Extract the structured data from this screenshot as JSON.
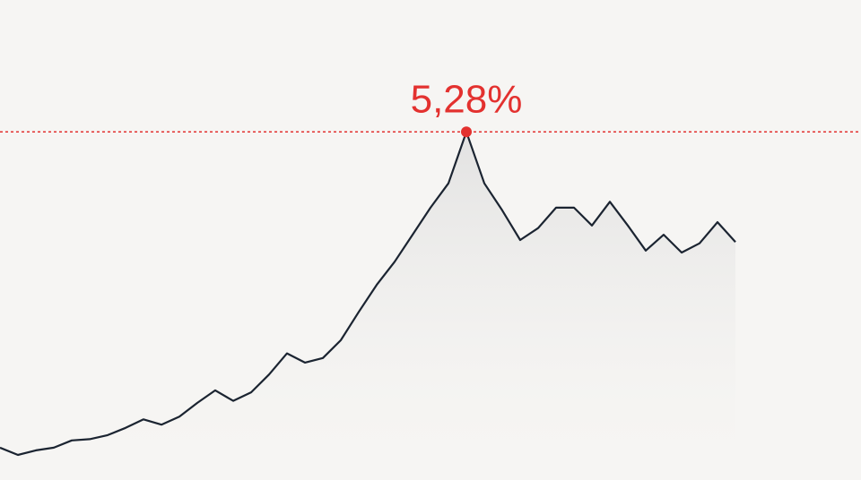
{
  "chart_data": {
    "type": "line",
    "values": [
      0.49,
      0.38,
      0.45,
      0.49,
      0.6,
      0.62,
      0.68,
      0.79,
      0.92,
      0.84,
      0.96,
      1.17,
      1.36,
      1.2,
      1.33,
      1.6,
      1.92,
      1.78,
      1.85,
      2.12,
      2.55,
      2.96,
      3.31,
      3.72,
      4.13,
      4.5,
      5.28,
      4.5,
      4.09,
      3.64,
      3.82,
      4.13,
      4.13,
      3.86,
      4.22,
      3.86,
      3.48,
      3.72,
      3.45,
      3.59,
      3.91,
      3.61
    ],
    "value_labels": [
      null,
      null,
      null,
      null,
      null,
      null,
      null,
      null,
      null,
      null,
      null,
      null,
      null,
      null,
      null,
      null,
      null,
      null,
      null,
      null,
      null,
      null,
      null,
      null,
      null,
      null,
      "5,28%",
      null,
      null,
      null,
      null,
      null,
      null,
      null,
      null,
      null,
      null,
      null,
      null,
      null,
      null,
      null
    ],
    "color": "#1b2431",
    "highlight_color": "#e3312f",
    "ylim": [
      0,
      7.28
    ]
  }
}
